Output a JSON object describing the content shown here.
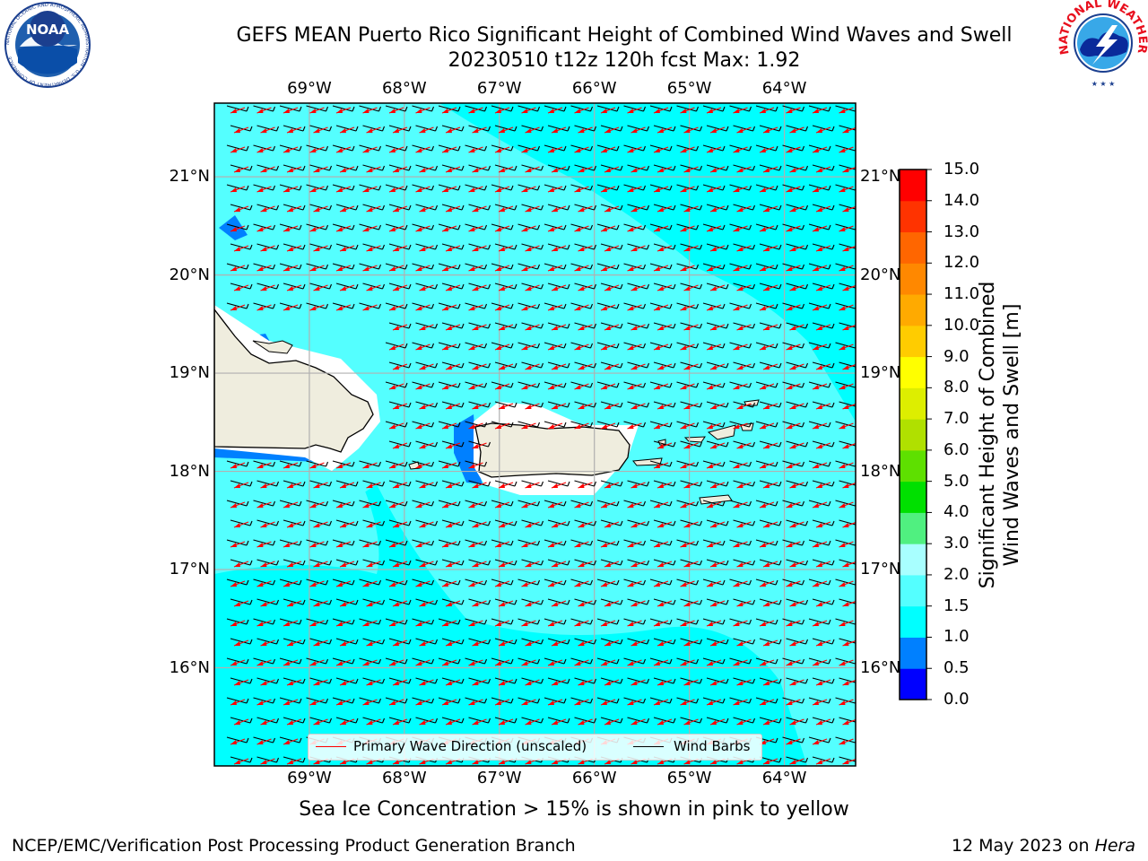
{
  "title": {
    "line1": "GEFS MEAN Puerto Rico Significant Height of Combined Wind Waves and Swell",
    "line2": "20230510 t12z 120h fcst   Max: 1.92"
  },
  "logos": {
    "left": {
      "text": "NOAA",
      "ring_text": "NATIONAL OCEANIC AND ATMOSPHERIC ADMINISTRATION · U.S. DEPARTMENT OF COMMERCE"
    },
    "right": {
      "ring_text": "NATIONAL WEATHER SERVICE"
    }
  },
  "map": {
    "lon_ticks": [
      "69°W",
      "68°W",
      "67°W",
      "66°W",
      "65°W",
      "64°W"
    ],
    "lat_ticks": [
      "21°N",
      "20°N",
      "19°N",
      "18°N",
      "17°N",
      "16°N"
    ],
    "lon_tick_values": [
      -69,
      -68,
      -67,
      -66,
      -65,
      -64
    ],
    "lat_tick_values": [
      21,
      20,
      19,
      18,
      17,
      16
    ],
    "extent": {
      "lon_min": -70.0,
      "lon_max": -63.25,
      "lat_min": 15.0,
      "lat_max": 21.75
    },
    "colors": {
      "land": "#efedde",
      "coast": "#000000",
      "arrow": "#ff0000",
      "barb": "#000000",
      "grid": "#b0b0b0"
    }
  },
  "legend": {
    "arrow_label": "Primary Wave Direction (unscaled)",
    "barb_label": "Wind Barbs"
  },
  "colorbar": {
    "label_line1": "Significant Height of Combined",
    "label_line2": "Wind Waves and Swell [m]",
    "ticks": [
      "15.0",
      "14.0",
      "13.0",
      "12.0",
      "11.0",
      "10.0",
      "9.0",
      "8.0",
      "7.0",
      "6.0",
      "5.0",
      "4.0",
      "3.0",
      "2.0",
      "1.5",
      "1.0",
      "0.5",
      "0.0"
    ],
    "colors": [
      "#0000ff",
      "#0080ff",
      "#00ffff",
      "#54ffff",
      "#a8ffff",
      "#50f080",
      "#00e000",
      "#5ee000",
      "#b0e000",
      "#ddee00",
      "#ffff00",
      "#ffcc00",
      "#ffaa00",
      "#ff8800",
      "#ff6600",
      "#ff3300",
      "#ff0000"
    ]
  },
  "bottom_note": "Sea Ice Concentration > 15% is shown in pink to yellow",
  "footer": {
    "left": "NCEP/EMC/Verification Post Processing Product Generation Branch",
    "right_date": "12 May 2023 on ",
    "right_host": "Hera"
  }
}
